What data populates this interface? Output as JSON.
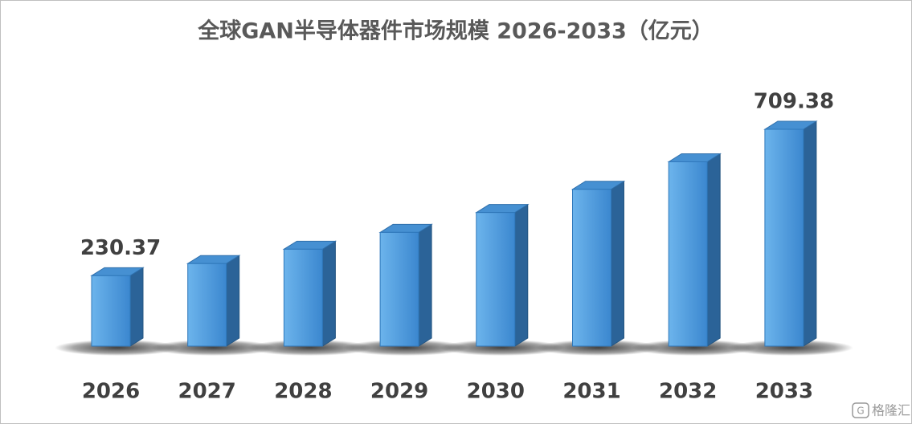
{
  "chart_data": {
    "type": "bar3d",
    "title": "全球GAN半导体器件市场规模 2026-2033（亿元）",
    "categories": [
      "2026",
      "2027",
      "2028",
      "2029",
      "2030",
      "2031",
      "2032",
      "2033"
    ],
    "values": [
      230.37,
      270,
      317,
      372,
      437,
      513,
      603,
      709.38
    ],
    "value_labels": [
      "230.37",
      null,
      null,
      null,
      null,
      null,
      null,
      "709.38"
    ],
    "color": "#3d8fd6"
  },
  "watermark": "格隆汇"
}
